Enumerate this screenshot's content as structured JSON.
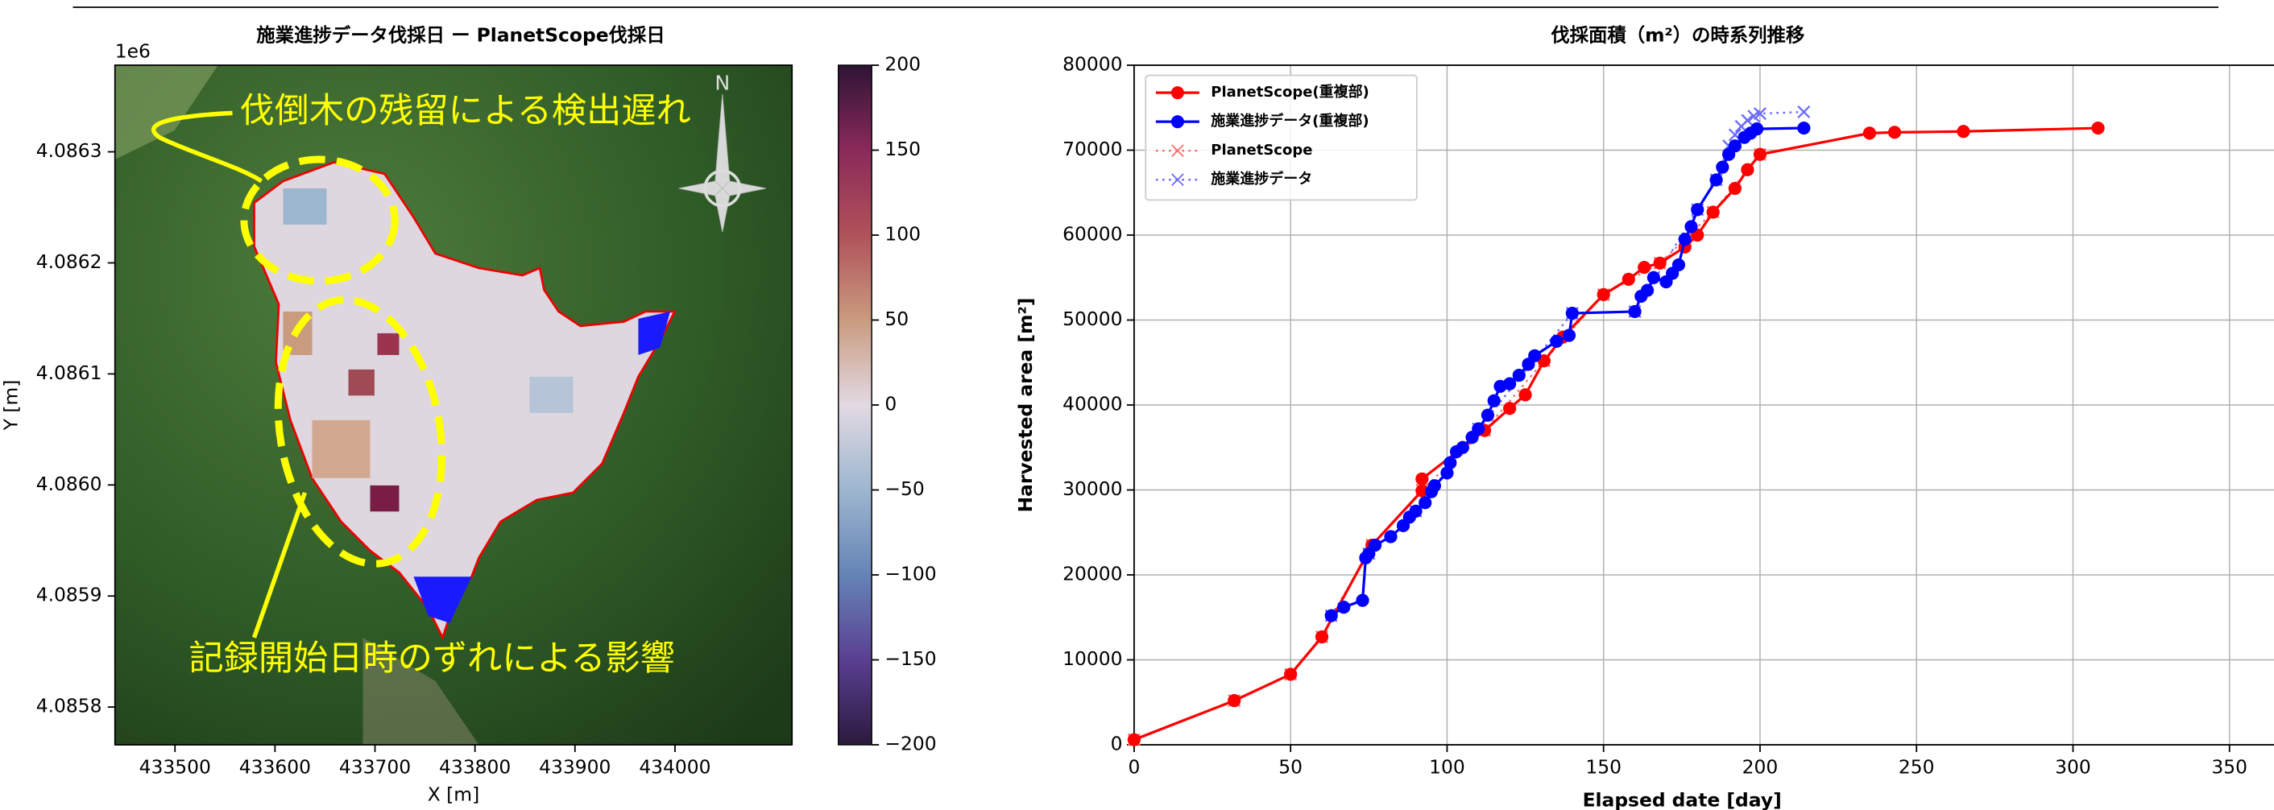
{
  "chart_data": [
    {
      "type": "map",
      "title": "施業進捗データ伐採日 ー PlanetScope伐採日",
      "xlabel": "X [m]",
      "ylabel": "Y [m]",
      "offset_label": "1e6",
      "xlim": [
        433440,
        434117
      ],
      "ylim": [
        4085766,
        4086378
      ],
      "xticks": [
        433500,
        433600,
        433700,
        433800,
        433900,
        434000
      ],
      "yticks": [
        {
          "value": 4085800,
          "label": "4.0858"
        },
        {
          "value": 4085900,
          "label": "4.0859"
        },
        {
          "value": 4086000,
          "label": "4.0860"
        },
        {
          "value": 4086100,
          "label": "4.0861"
        },
        {
          "value": 4086200,
          "label": "4.0862"
        },
        {
          "value": 4086300,
          "label": "4.0863"
        }
      ],
      "annotations": [
        "伐倒木の残留による検出遅れ",
        "記録開始日時のずれによる影響",
        "N"
      ],
      "colorbar": {
        "clim": [
          -200,
          200
        ],
        "ticks": [
          {
            "value": -200,
            "label": "−200"
          },
          {
            "value": -150,
            "label": "−150"
          },
          {
            "value": -100,
            "label": "−100"
          },
          {
            "value": -50,
            "label": "−50"
          },
          0,
          50,
          100,
          150,
          200
        ],
        "colormap": [
          "#2b1a3d",
          "#5a3f91",
          "#6584b6",
          "#9db6cf",
          "#e2d9e2",
          "#c99b7f",
          "#b0525a",
          "#8a2a5a",
          "#2f1436"
        ]
      }
    },
    {
      "type": "line",
      "title": "伐採面積（m²）の時系列推移",
      "xlabel": "Elapsed date [day]",
      "ylabel": "Harvested area [m²]",
      "xlim": [
        0,
        365
      ],
      "ylim": [
        0,
        80000
      ],
      "xticks": [
        0,
        50,
        100,
        150,
        200,
        250,
        300,
        350
      ],
      "yticks": [
        0,
        10000,
        20000,
        30000,
        40000,
        50000,
        60000,
        70000,
        80000
      ],
      "grid": true,
      "legend": "upper left",
      "series": [
        {
          "name": "PlanetScope(重複部)",
          "color": "#ff0000",
          "marker": "o",
          "linestyle": "solid",
          "x": [
            0,
            32,
            50,
            60,
            76,
            92,
            92,
            112,
            120,
            125,
            131,
            137,
            150,
            158,
            163,
            168,
            176,
            180,
            185,
            192,
            196,
            200,
            235,
            243,
            265,
            308
          ],
          "values": [
            600,
            5200,
            8300,
            12700,
            23500,
            29900,
            31300,
            37000,
            39600,
            41200,
            45200,
            48000,
            53000,
            54800,
            56200,
            56700,
            58600,
            60000,
            62700,
            65500,
            67700,
            69500,
            72000,
            72100,
            72200,
            72600
          ]
        },
        {
          "name": "施業進捗データ(重複部)",
          "color": "#0000ff",
          "marker": "o",
          "linestyle": "solid",
          "x": [
            63,
            67,
            73,
            74,
            75,
            77,
            82,
            86,
            88,
            90,
            93,
            95,
            96,
            100,
            101,
            103,
            105,
            108,
            110,
            113,
            115,
            117,
            120,
            123,
            126,
            128,
            135,
            139,
            140,
            160,
            162,
            164,
            166,
            170,
            172,
            174,
            176,
            178,
            180,
            186,
            188,
            190,
            192,
            195,
            197,
            199,
            214
          ],
          "values": [
            15200,
            16200,
            17000,
            22000,
            22500,
            23500,
            24500,
            25800,
            26800,
            27500,
            28500,
            29800,
            30500,
            32000,
            33200,
            34500,
            35000,
            36200,
            37200,
            38800,
            40500,
            42200,
            42500,
            43500,
            44800,
            45800,
            47500,
            48200,
            50800,
            51000,
            52800,
            53500,
            55000,
            54500,
            55500,
            56500,
            59500,
            61000,
            63000,
            66500,
            68000,
            69500,
            70500,
            71500,
            72000,
            72500,
            72600
          ]
        },
        {
          "name": "PlanetScope",
          "color": "#ff6b6b",
          "marker": "x",
          "linestyle": "dotted",
          "x": [
            0,
            32,
            50,
            60,
            76,
            92,
            112,
            131,
            150,
            168,
            185,
            200
          ],
          "values": [
            600,
            5200,
            8300,
            12700,
            23500,
            30000,
            37000,
            45200,
            53000,
            56700,
            62700,
            69500
          ]
        },
        {
          "name": "施業進捗データ",
          "color": "#6b6bff",
          "marker": "x",
          "linestyle": "dotted",
          "x": [
            63,
            75,
            90,
            110,
            140,
            160,
            180,
            186,
            190,
            192,
            194,
            196,
            198,
            200,
            214
          ],
          "values": [
            15200,
            22500,
            27500,
            37200,
            50800,
            51000,
            63000,
            66500,
            70500,
            71800,
            72800,
            73500,
            74000,
            74300,
            74500
          ]
        }
      ]
    }
  ]
}
